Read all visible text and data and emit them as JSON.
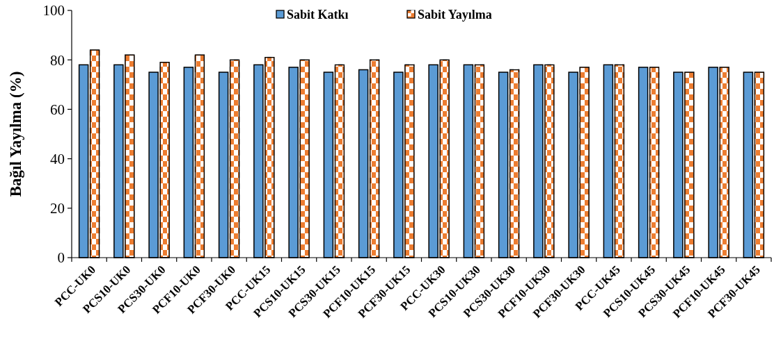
{
  "chart_data": {
    "type": "bar",
    "ylabel": "Bağıl Yayılma (%)",
    "categories": [
      "PCC-UK0",
      "PCS10-UK0",
      "PCS30-UK0",
      "PCF10-UK0",
      "PCF30-UK0",
      "PCC-UK15",
      "PCS10-UK15",
      "PCS30-UK15",
      "PCF10-UK15",
      "PCF30-UK15",
      "PCC-UK30",
      "PCS10-UK30",
      "PCS30-UK30",
      "PCF10-UK30",
      "PCF30-UK30",
      "PCC-UK45",
      "PCS10-UK45",
      "PCS30-UK45",
      "PCF10-UK45",
      "PCF30-UK45"
    ],
    "series": [
      {
        "name": "Sabit Katkı",
        "color": "#5b9bd5",
        "values": [
          78,
          78,
          75,
          77,
          75,
          78,
          77,
          75,
          76,
          75,
          78,
          78,
          75,
          78,
          75,
          78,
          77,
          75,
          77,
          75
        ]
      },
      {
        "name": "Sabit Yayılma",
        "color": "#ed7d31",
        "values": [
          84,
          82,
          79,
          82,
          80,
          81,
          80,
          78,
          80,
          78,
          80,
          78,
          76,
          78,
          77,
          78,
          77,
          75,
          77,
          75
        ]
      }
    ],
    "ylim": [
      0,
      100
    ],
    "yticks": [
      0,
      20,
      40,
      60,
      80,
      100
    ],
    "legend": "top"
  }
}
